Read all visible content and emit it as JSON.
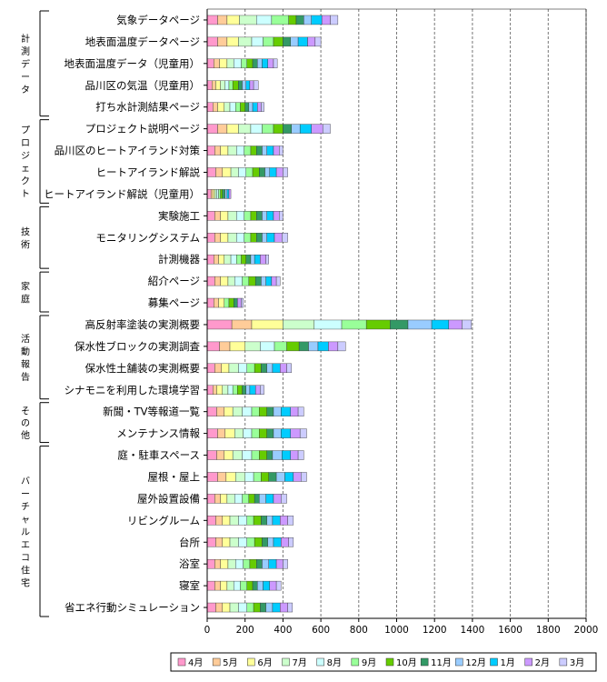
{
  "chart_data": {
    "type": "bar",
    "orientation": "horizontal",
    "stacked": true,
    "title": "",
    "xlabel": "",
    "ylabel": "",
    "xlim": [
      0,
      2000
    ],
    "xticks": [
      "0",
      "200",
      "400",
      "600",
      "800",
      "1000",
      "1200",
      "1400",
      "1600",
      "1800",
      "2000"
    ],
    "grid": "vertical-dashed",
    "legend_position": "bottom",
    "groups": [
      {
        "label": "計測データ",
        "items": [
          "気象データページ",
          "地表面温度データページ",
          "地表面温度データ（児童用）",
          "品川区の気温（児童用）",
          "打ち水計測結果ページ"
        ]
      },
      {
        "label": "プロジェクト",
        "items": [
          "プロジェクト説明ページ",
          "品川区のヒートアイランド対策",
          "ヒートアイランド解説",
          "ヒートアイランド解説（児童用）"
        ]
      },
      {
        "label": "技術",
        "items": [
          "実験施工",
          "モニタリングシステム",
          "計測機器"
        ]
      },
      {
        "label": "家庭",
        "items": [
          "紹介ページ",
          "募集ページ"
        ]
      },
      {
        "label": "活動報告",
        "items": [
          "高反射率塗装の実測概要",
          "保水性ブロックの実測調査",
          "保水性土舗装の実測概要",
          "シナモニを利用した環境学習"
        ]
      },
      {
        "label": "その他",
        "items": [
          "新聞・TV等報道一覧",
          "メンテナンス情報"
        ]
      },
      {
        "label": "バーチャルエコ住宅",
        "items": [
          "庭・駐車スペース",
          "屋根・屋上",
          "屋外設置設備",
          "リビングルーム",
          "台所",
          "浴室",
          "寝室",
          "省エネ行動シミュレーション"
        ]
      }
    ],
    "categories": [
      "気象データページ",
      "地表面温度データページ",
      "地表面温度データ（児童用）",
      "品川区の気温（児童用）",
      "打ち水計測結果ページ",
      "プロジェクト説明ページ",
      "品川区のヒートアイランド対策",
      "ヒートアイランド解説",
      "ヒートアイランド解説（児童用）",
      "実験施工",
      "モニタリングシステム",
      "計測機器",
      "紹介ページ",
      "募集ページ",
      "高反射率塗装の実測概要",
      "保水性ブロックの実測調査",
      "保水性土舗装の実測概要",
      "シナモニを利用した環境学習",
      "新聞・TV等報道一覧",
      "メンテナンス情報",
      "庭・駐車スペース",
      "屋根・屋上",
      "屋外設置設備",
      "リビングルーム",
      "台所",
      "浴室",
      "寝室",
      "省エネ行動シミュレーション"
    ],
    "series": [
      {
        "name": "4月",
        "color": "#ff99cc",
        "values": [
          55,
          55,
          35,
          25,
          30,
          55,
          40,
          45,
          20,
          40,
          40,
          35,
          40,
          35,
          130,
          65,
          40,
          30,
          50,
          55,
          50,
          55,
          40,
          45,
          45,
          40,
          40,
          45
        ]
      },
      {
        "name": "5月",
        "color": "#ffcc99",
        "values": [
          50,
          50,
          30,
          20,
          25,
          50,
          30,
          35,
          10,
          30,
          30,
          25,
          30,
          25,
          105,
          55,
          35,
          20,
          40,
          40,
          40,
          45,
          30,
          35,
          35,
          30,
          30,
          35
        ]
      },
      {
        "name": "6月",
        "color": "#ffff99",
        "values": [
          65,
          60,
          40,
          25,
          35,
          60,
          40,
          45,
          10,
          40,
          40,
          30,
          40,
          30,
          165,
          80,
          40,
          30,
          45,
          50,
          45,
          50,
          35,
          40,
          40,
          40,
          35,
          40
        ]
      },
      {
        "name": "7月",
        "color": "#ccffcc",
        "values": [
          90,
          70,
          35,
          25,
          30,
          65,
          45,
          40,
          10,
          45,
          45,
          35,
          35,
          0,
          165,
          80,
          50,
          30,
          50,
          45,
          50,
          50,
          40,
          45,
          45,
          40,
          35,
          45
        ]
      },
      {
        "name": "8月",
        "color": "#ccffff",
        "values": [
          80,
          60,
          40,
          20,
          30,
          60,
          40,
          40,
          10,
          40,
          40,
          30,
          40,
          0,
          145,
          75,
          45,
          25,
          50,
          45,
          50,
          45,
          40,
          45,
          45,
          40,
          35,
          45
        ]
      },
      {
        "name": "9月",
        "color": "#99ff99",
        "values": [
          90,
          55,
          30,
          20,
          25,
          60,
          35,
          35,
          10,
          35,
          35,
          25,
          35,
          25,
          130,
          65,
          40,
          25,
          40,
          40,
          40,
          40,
          35,
          35,
          40,
          35,
          35,
          35
        ]
      },
      {
        "name": "10月",
        "color": "#66cc00",
        "values": [
          40,
          50,
          30,
          30,
          25,
          50,
          30,
          35,
          10,
          30,
          30,
          25,
          35,
          25,
          125,
          65,
          35,
          25,
          40,
          40,
          40,
          40,
          30,
          40,
          40,
          35,
          30,
          35
        ]
      },
      {
        "name": "11月",
        "color": "#339966",
        "values": [
          40,
          40,
          25,
          20,
          20,
          45,
          30,
          30,
          15,
          30,
          30,
          25,
          30,
          20,
          95,
          50,
          30,
          20,
          35,
          35,
          30,
          40,
          25,
          30,
          30,
          30,
          25,
          30
        ]
      },
      {
        "name": "12月",
        "color": "#99ccff",
        "values": [
          40,
          40,
          25,
          20,
          20,
          45,
          25,
          25,
          10,
          25,
          25,
          20,
          25,
          0,
          125,
          50,
          30,
          20,
          40,
          40,
          50,
          45,
          35,
          30,
          30,
          35,
          30,
          35
        ]
      },
      {
        "name": "1月",
        "color": "#00ccff",
        "values": [
          55,
          50,
          30,
          20,
          25,
          60,
          35,
          35,
          10,
          35,
          40,
          30,
          30,
          0,
          90,
          55,
          40,
          30,
          50,
          50,
          45,
          45,
          40,
          40,
          40,
          40,
          35,
          40
        ]
      },
      {
        "name": "2月",
        "color": "#cc99ff",
        "values": [
          45,
          40,
          30,
          20,
          20,
          60,
          30,
          35,
          10,
          30,
          40,
          30,
          25,
          20,
          70,
          50,
          35,
          25,
          40,
          50,
          40,
          40,
          40,
          40,
          40,
          35,
          35,
          40
        ]
      },
      {
        "name": "3月",
        "color": "#ccccff",
        "values": [
          40,
          30,
          20,
          25,
          15,
          40,
          20,
          25,
          0,
          20,
          30,
          15,
          20,
          10,
          50,
          40,
          25,
          20,
          30,
          35,
          30,
          30,
          30,
          30,
          25,
          25,
          25,
          25
        ]
      }
    ]
  }
}
